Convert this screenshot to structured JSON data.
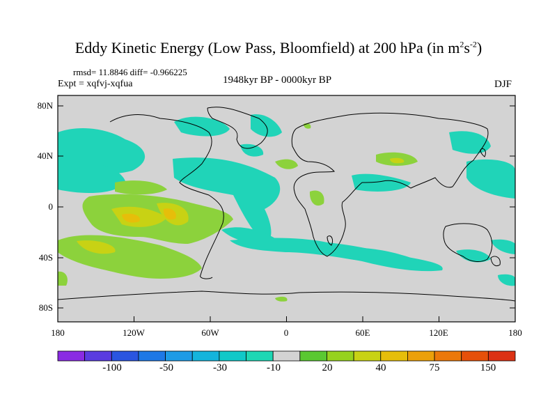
{
  "title": {
    "main": "Eddy Kinetic Energy (Low Pass, Bloomfield) at 200 hPa (in m",
    "sup1": "2",
    "mid": "s",
    "sup2": "-2",
    "end": ")"
  },
  "stats": {
    "rmsd": "rmsd= 11.8846 diff= -0.966225"
  },
  "experiment": "Expt = xqfvj-xqfua",
  "period": "1948kyr BP - 0000kyr BP",
  "season": "DJF",
  "lat_labels": [
    "80N",
    "40N",
    "0",
    "40S",
    "80S"
  ],
  "lon_labels": [
    "180",
    "120W",
    "60W",
    "0",
    "60E",
    "120E",
    "180"
  ],
  "colorbar": {
    "labels": [
      "-100",
      "-50",
      "-30",
      "-10",
      "20",
      "40",
      "75",
      "150"
    ],
    "colors": [
      "#8a2be2",
      "#5a3ce0",
      "#2a55e0",
      "#1e78e6",
      "#1e9be6",
      "#14b4dc",
      "#10c8c8",
      "#1ed7b4",
      "#d3d3d3",
      "#5ac832",
      "#96d21e",
      "#c8d214",
      "#e6be0a",
      "#eba00a",
      "#eb780a",
      "#e6500a",
      "#dc3214"
    ]
  },
  "map": {
    "land_color": "#d3d3d3",
    "positive_color": "#8cd23c",
    "negative_color": "#20d4b8"
  },
  "chart_data": {
    "type": "heatmap",
    "title": "Eddy Kinetic Energy (Low Pass, Bloomfield) at 200 hPa (in m2s-2)",
    "x_ticks": [
      "180",
      "120W",
      "60W",
      "0",
      "60E",
      "120E",
      "180"
    ],
    "y_ticks": [
      "80N",
      "40N",
      "0",
      "40S",
      "80S"
    ],
    "contour_levels": [
      -100,
      -50,
      -30,
      -10,
      20,
      40,
      75,
      150
    ]
  }
}
